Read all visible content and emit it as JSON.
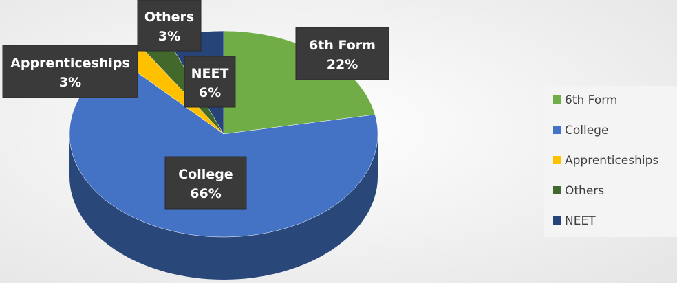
{
  "chart_data": {
    "type": "pie",
    "categories": [
      "6th Form",
      "College",
      "Apprenticeships",
      "Others",
      "NEET"
    ],
    "values": [
      22,
      66,
      3,
      3,
      6
    ],
    "value_labels": [
      "22%",
      "66%",
      "3%",
      "3%",
      "6%"
    ],
    "colors": [
      "#70ad47",
      "#4472c4",
      "#ffc000",
      "#43682b",
      "#264478"
    ],
    "legend": "right"
  }
}
